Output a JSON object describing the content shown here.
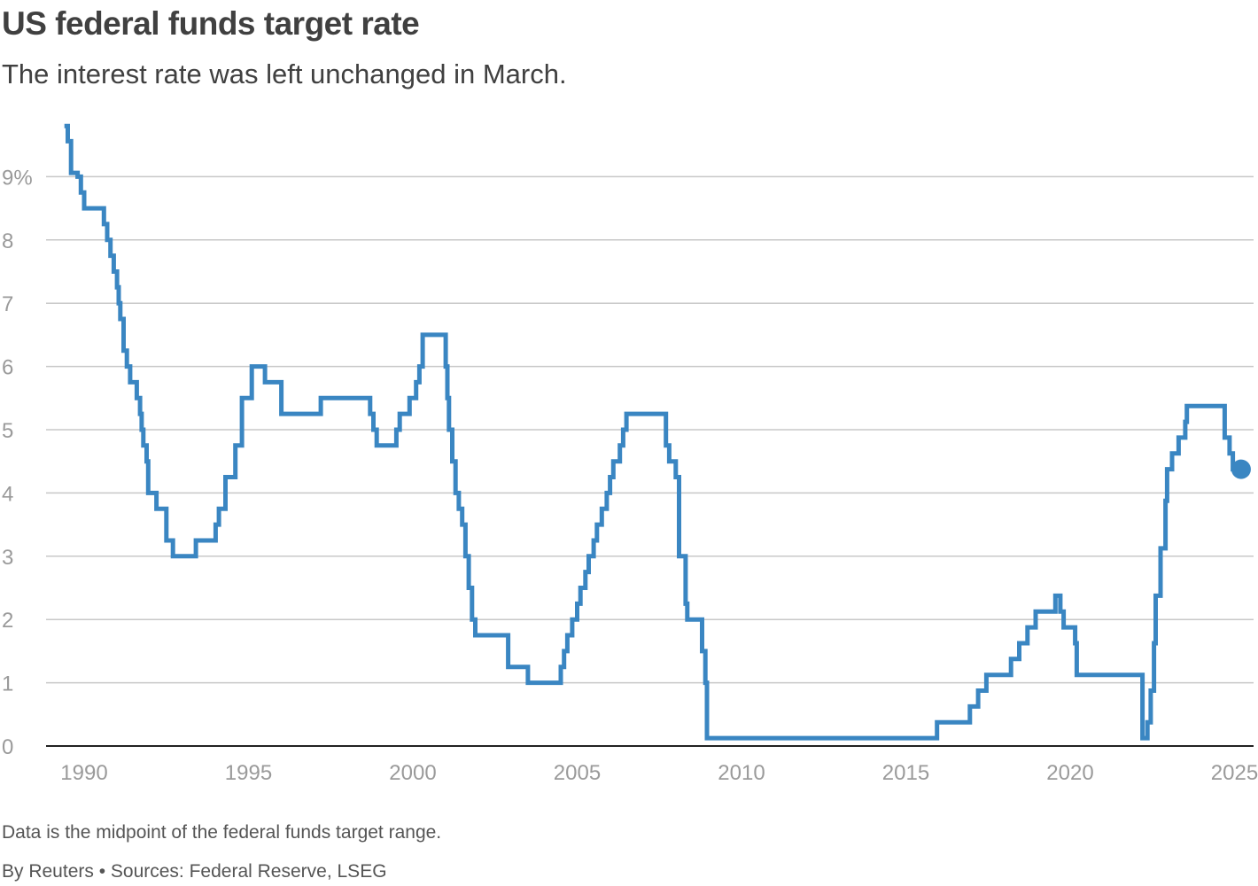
{
  "chart_data": {
    "type": "line",
    "title": "US federal funds target rate",
    "subtitle": "The interest rate was left unchanged in March.",
    "xlabel": "",
    "ylabel": "",
    "xlim": [
      1989.0,
      2025.3
    ],
    "ylim": [
      0,
      9.8
    ],
    "grid": "horizontal",
    "y_ticks": [
      {
        "value": 0,
        "label": "0"
      },
      {
        "value": 1,
        "label": "1"
      },
      {
        "value": 2,
        "label": "2"
      },
      {
        "value": 3,
        "label": "3"
      },
      {
        "value": 4,
        "label": "4"
      },
      {
        "value": 5,
        "label": "5"
      },
      {
        "value": 6,
        "label": "6"
      },
      {
        "value": 7,
        "label": "7"
      },
      {
        "value": 8,
        "label": "8"
      },
      {
        "value": 9,
        "label": "9%"
      }
    ],
    "x_ticks": [
      {
        "value": 1990,
        "label": "1990"
      },
      {
        "value": 1995,
        "label": "1995"
      },
      {
        "value": 2000,
        "label": "2000"
      },
      {
        "value": 2005,
        "label": "2005"
      },
      {
        "value": 2010,
        "label": "2010"
      },
      {
        "value": 2015,
        "label": "2015"
      },
      {
        "value": 2020,
        "label": "2020"
      },
      {
        "value": 2025,
        "label": "2025"
      }
    ],
    "step": "after",
    "color": "#3a86c2",
    "series": [
      {
        "x": [
          1989.4,
          1989.5,
          1989.6,
          1989.8,
          1989.9,
          1990.0,
          1990.6,
          1990.7,
          1990.8,
          1990.9,
          1991.0,
          1991.05,
          1991.1,
          1991.2,
          1991.3,
          1991.4,
          1991.6,
          1991.7,
          1991.75,
          1991.8,
          1991.9,
          1991.95,
          1992.0,
          1992.2,
          1992.5,
          1992.7,
          1993.4,
          1994.0,
          1994.1,
          1994.3,
          1994.6,
          1994.8,
          1995.1,
          1995.5,
          1996.0,
          1997.2,
          1998.7,
          1998.8,
          1998.9,
          1999.5,
          1999.6,
          1999.9,
          2000.1,
          2000.2,
          2000.3,
          2001.0,
          2001.05,
          2001.1,
          2001.2,
          2001.3,
          2001.4,
          2001.5,
          2001.6,
          2001.7,
          2001.8,
          2001.9,
          2002.9,
          2003.5,
          2004.5,
          2004.6,
          2004.7,
          2004.85,
          2005.0,
          2005.1,
          2005.25,
          2005.35,
          2005.5,
          2005.6,
          2005.75,
          2005.9,
          2006.0,
          2006.1,
          2006.3,
          2006.4,
          2006.5,
          2007.7,
          2007.8,
          2008.0,
          2008.1,
          2008.3,
          2008.35,
          2008.8,
          2008.9,
          2008.95,
          2015.95,
          2016.95,
          2017.2,
          2017.45,
          2018.2,
          2018.45,
          2018.7,
          2018.95,
          2019.55,
          2019.7,
          2019.8,
          2020.15,
          2020.2,
          2022.2,
          2022.35,
          2022.45,
          2022.55,
          2022.6,
          2022.75,
          2022.9,
          2022.95,
          2023.1,
          2023.3,
          2023.5,
          2023.55,
          2024.7,
          2024.85,
          2024.95,
          2025.2
        ],
        "values": [
          9.8,
          9.56,
          9.06,
          9.0,
          8.75,
          8.5,
          8.25,
          8.0,
          7.75,
          7.5,
          7.25,
          7.0,
          6.75,
          6.25,
          6.0,
          5.75,
          5.5,
          5.25,
          5.0,
          4.75,
          4.5,
          4.0,
          4.0,
          3.75,
          3.25,
          3.0,
          3.25,
          3.5,
          3.75,
          4.25,
          4.75,
          5.5,
          6.0,
          5.75,
          5.25,
          5.5,
          5.25,
          5.0,
          4.75,
          5.0,
          5.25,
          5.5,
          5.75,
          6.0,
          6.5,
          6.0,
          5.5,
          5.0,
          4.5,
          4.0,
          3.75,
          3.5,
          3.0,
          2.5,
          2.0,
          1.75,
          1.25,
          1.0,
          1.25,
          1.5,
          1.75,
          2.0,
          2.25,
          2.5,
          2.75,
          3.0,
          3.25,
          3.5,
          3.75,
          4.0,
          4.25,
          4.5,
          4.75,
          5.0,
          5.25,
          4.75,
          4.5,
          4.25,
          3.0,
          2.25,
          2.0,
          1.5,
          1.0,
          0.125,
          0.375,
          0.625,
          0.875,
          1.125,
          1.375,
          1.625,
          1.875,
          2.125,
          2.375,
          2.125,
          1.875,
          1.625,
          1.125,
          0.125,
          0.375,
          0.875,
          1.625,
          2.375,
          3.125,
          3.875,
          4.375,
          4.625,
          4.875,
          5.125,
          5.375,
          4.875,
          4.625,
          4.375,
          4.375
        ]
      }
    ],
    "last_point": {
      "x": 2025.2,
      "y": 4.375
    }
  },
  "footer": {
    "note": "Data is the midpoint of the federal funds target range.",
    "credit": "By Reuters • Sources: Federal Reserve, LSEG"
  }
}
